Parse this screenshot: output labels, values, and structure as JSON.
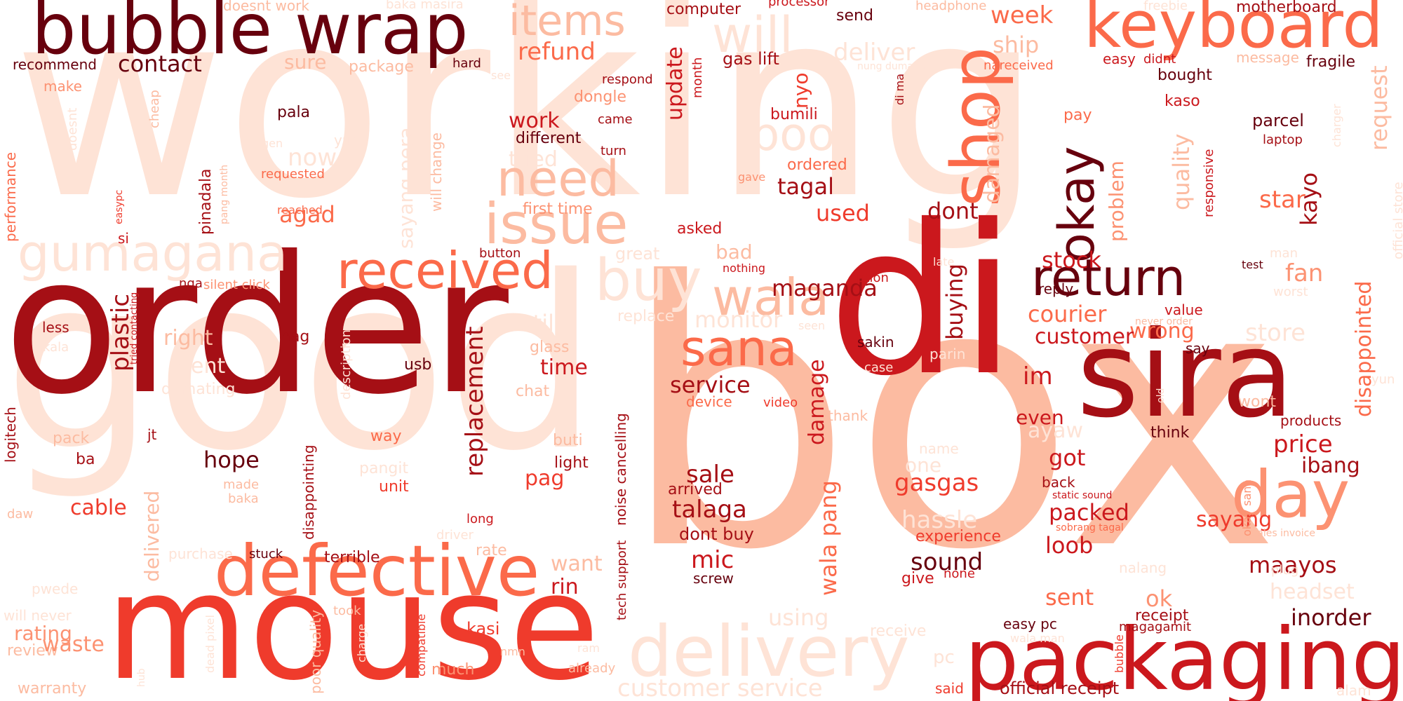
{
  "words": {
    "working": "working",
    "box": "box",
    "good": "good",
    "order": "order",
    "di": "di",
    "mouse": "mouse",
    "sira": "sira",
    "packaging": "packaging",
    "bubble_wrap": "bubble wrap",
    "keyboard": "keyboard",
    "defective": "defective",
    "delivery": "delivery",
    "gumagana": "gumagana",
    "received": "received",
    "return": "return",
    "shop": "shop",
    "day": "day",
    "issue": "issue",
    "need": "need",
    "buy": "buy",
    "wala": "wala",
    "sana": "sana",
    "okay": "okay",
    "items": "items",
    "will": "will",
    "poor": "poor",
    "refund": "refund",
    "contact": "contact",
    "week": "week",
    "ship": "ship",
    "deliver": "deliver",
    "customer_service": "customer service",
    "replacement": "replacement",
    "plastic": "plastic",
    "disappointed": "disappointed",
    "damaged": "damaged",
    "quality": "quality",
    "request": "request",
    "kayo": "kayo",
    "star": "star",
    "fan": "fan",
    "store": "store",
    "wrong": "wrong",
    "courier": "courier",
    "customer": "customer",
    "stock": "stock",
    "buying": "buying",
    "maganda": "maganda",
    "monitor": "monitor",
    "service": "service",
    "damage": "damage",
    "wala_pang": "wala pang",
    "talaga": "talaga",
    "sale": "sale",
    "mic": "mic",
    "dont_buy": "dont buy",
    "gasgas": "gasgas",
    "hassle": "hassle",
    "sound": "sound",
    "packed": "packed",
    "loob": "loob",
    "sayang": "sayang",
    "maayos": "maayos",
    "price": "price",
    "ibang": "ibang",
    "got": "got",
    "even": "even",
    "im": "im",
    "ayaw": "ayaw",
    "one": "one",
    "experience": "experience",
    "give": "give",
    "none": "none",
    "sent": "sent",
    "ok": "ok",
    "headset": "headset",
    "inorder": "inorder",
    "receipt": "receipt",
    "official_receipt": "official receipt",
    "easy_pc": "easy pc",
    "magagamit": "magagamit",
    "said": "said",
    "pc": "pc",
    "using": "using",
    "receive": "receive",
    "wala_man": "wala man",
    "tagal": "tagal",
    "used": "used",
    "dont": "dont",
    "problem": "problem",
    "ordered": "ordered",
    "bumili": "bumili",
    "nyo": "nyo",
    "update": "update",
    "gas_lift": "gas lift",
    "month": "month",
    "computer": "computer",
    "processor": "processor",
    "send": "send",
    "headphone": "headphone",
    "motherboard": "motherboard",
    "freebie": "freebie",
    "message": "message",
    "fragile": "fragile",
    "easy": "easy",
    "didnt": "didnt",
    "nareceived": "nareceived",
    "bought": "bought",
    "kaso": "kaso",
    "pay": "pay",
    "parcel": "parcel",
    "laptop": "laptop",
    "responsive": "responsive",
    "charger": "charger",
    "official_store": "official store",
    "di_ma": "di ma",
    "nung_dumating": "nung dumating",
    "respond": "respond",
    "came": "came",
    "turn": "turn",
    "dongle": "dongle",
    "different": "different",
    "work": "work",
    "tried": "tried",
    "first_time": "first time",
    "gave": "gave",
    "asked": "asked",
    "bad": "bad",
    "great": "great",
    "button": "button",
    "nothing": "nothing",
    "option": "option",
    "late": "late",
    "reply": "reply",
    "test": "test",
    "man": "man",
    "worst": "worst",
    "never_order": "never order",
    "value": "value",
    "say": "say",
    "seen": "seen",
    "sakin": "sakin",
    "parin": "parin",
    "case": "case",
    "old": "old",
    "device": "device",
    "video": "video",
    "thank": "thank",
    "wont": "wont",
    "products": "products",
    "think": "think",
    "yun": "yun",
    "back": "back",
    "static_sound": "static sound",
    "sobrang_tagal": "sobrang tagal",
    "sales_invoice": "sales invoice",
    "okay_sana": "okay sana",
    "plug": "plug",
    "name": "name",
    "bubble": "bubble",
    "nalang": "nalang",
    "alam": "alam",
    "doesnt_work": "doesnt work",
    "baka_masira": "baka masira",
    "see": "see",
    "hard": "hard",
    "recommend": "recommend",
    "make": "make",
    "package": "package",
    "sure": "sure",
    "pala": "pala",
    "cheap": "cheap",
    "doesnt": "doesnt",
    "performance": "performance",
    "gen": "gen",
    "yupi": "yupi",
    "now": "now",
    "requested": "requested",
    "agad": "agad",
    "reached": "reached",
    "pang_month": "pang month",
    "pinadala": "pinadala",
    "easypc": "easypc",
    "si": "si",
    "sayang_pera": "sayang pera",
    "will_change": "will change",
    "nga": "nga",
    "silent_click": "silent click",
    "tried_contacting": "tried contacting",
    "less": "less",
    "akala": "akala",
    "nag": "nag",
    "right": "right",
    "dent": "dent",
    "dumating": "dumating",
    "description": "description",
    "usb": "usb",
    "logitech": "logitech",
    "still": "still",
    "glass": "glass",
    "replace": "replace",
    "time": "time",
    "chat": "chat",
    "noise_cancelling": "noise cancelling",
    "pack": "pack",
    "jt": "jt",
    "hope": "hope",
    "way": "way",
    "buti": "buti",
    "ba": "ba",
    "made": "made",
    "baka": "baka",
    "pangit": "pangit",
    "unit": "unit",
    "light": "light",
    "pag": "pag",
    "disappointing": "disappointing",
    "delivered": "delivered",
    "cable": "cable",
    "daw": "daw",
    "long": "long",
    "driver": "driver",
    "purchase": "purchase",
    "stuck": "stuck",
    "terrible": "terrible",
    "rate": "rate",
    "want": "want",
    "rin": "rin",
    "pwede": "pwede",
    "tech_support": "tech support",
    "will_never": "will never",
    "rating": "rating",
    "review": "review",
    "waste": "waste",
    "warranty": "warranty",
    "hub": "hub",
    "dead_pixel": "dead pixel",
    "charge": "charge",
    "poor_quality": "poor quality",
    "took": "took",
    "compatible": "compatible",
    "kasi": "kasi",
    "nmn": "nmn",
    "ram": "ram",
    "much": "much",
    "already": "already",
    "screw": "screw",
    "arrived": "arrived"
  }
}
